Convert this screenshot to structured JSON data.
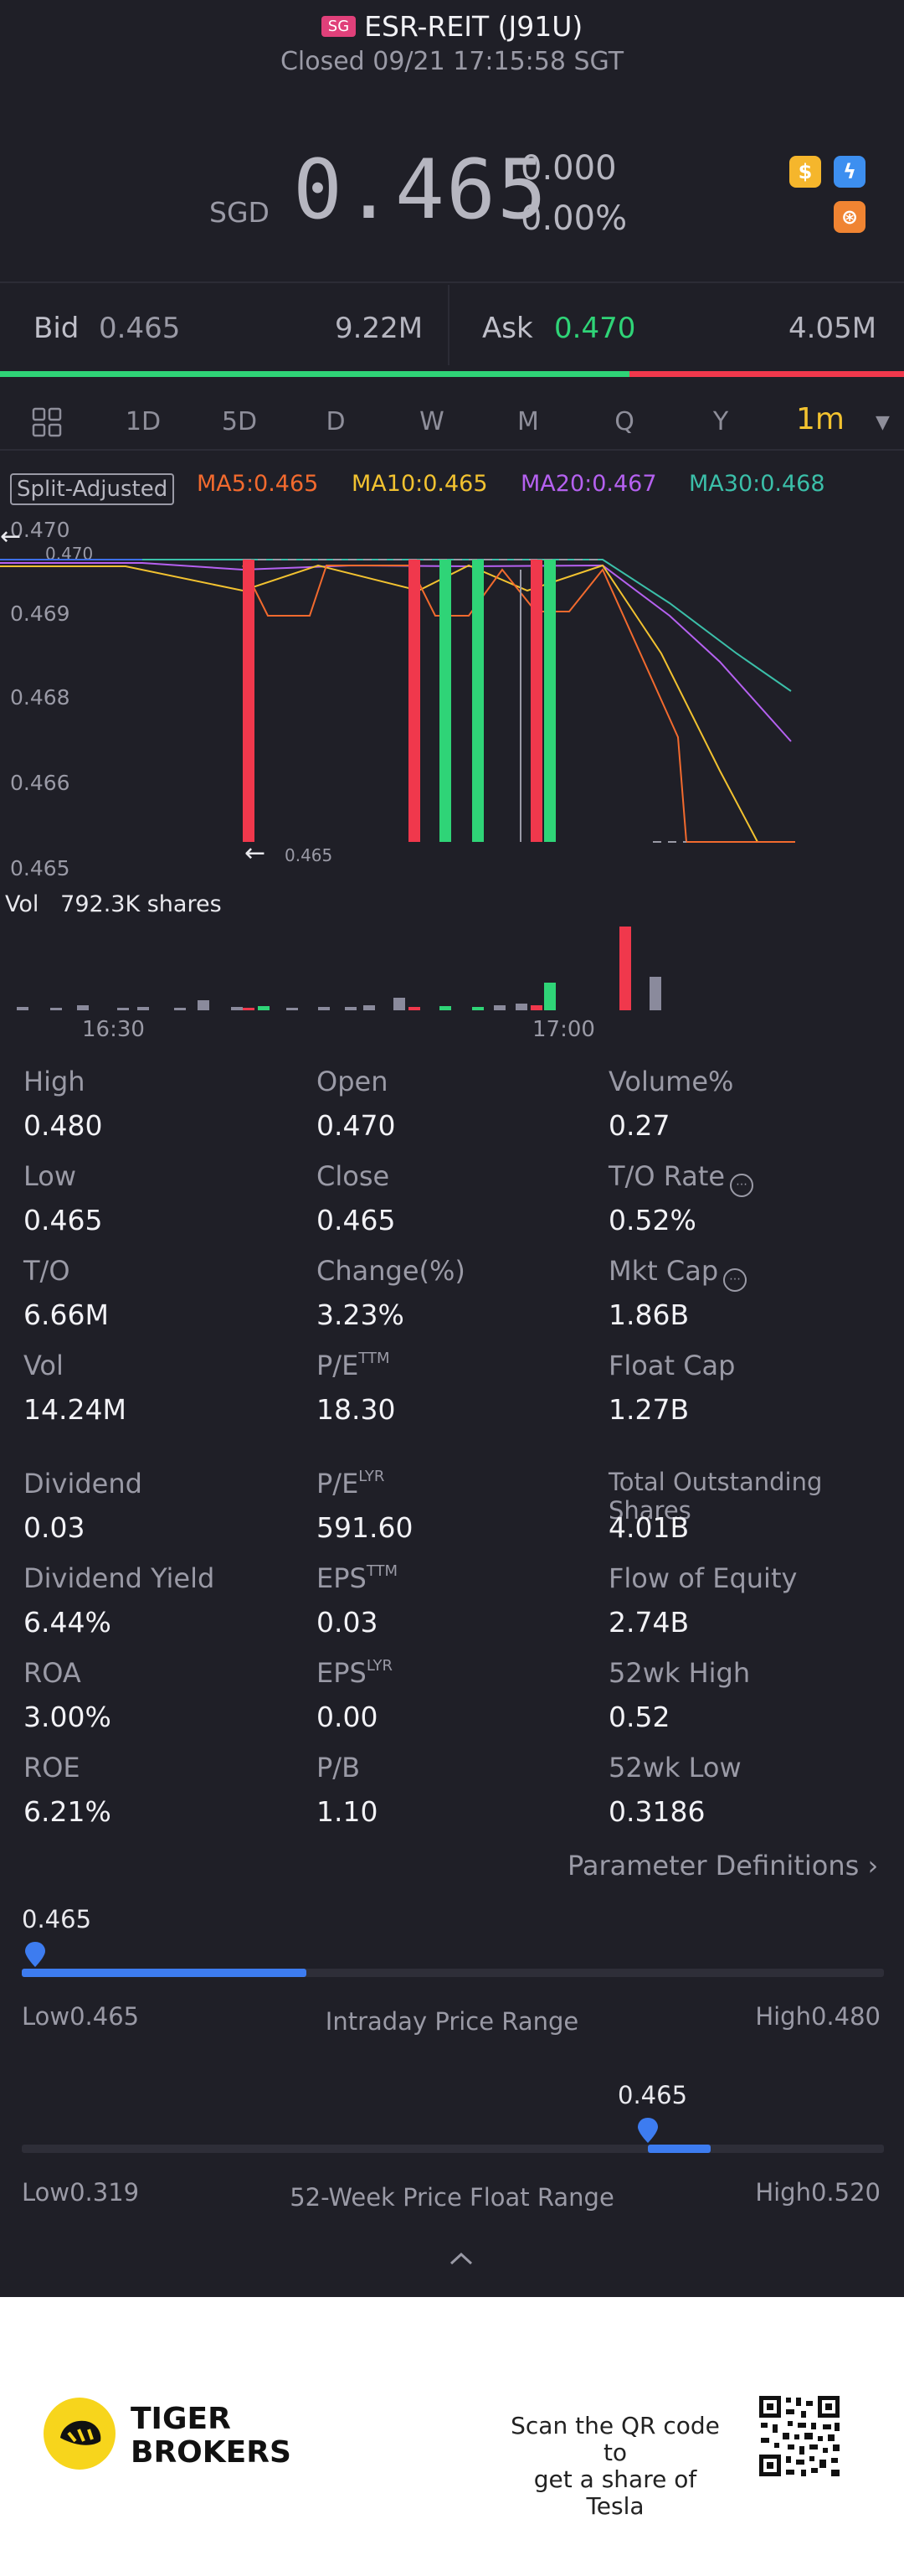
{
  "header": {
    "market_badge": "SG",
    "title": "ESR-REIT (J91U)",
    "status": "Closed 09/21 17:15:58 SGT"
  },
  "quote": {
    "currency": "SGD",
    "price": "0.465",
    "change": "0.000",
    "change_pct": "0.00%",
    "icons": [
      "dollar-badge-icon",
      "lightning-badge-icon",
      "options-badge-icon"
    ]
  },
  "orderbook": {
    "bid_label": "Bid",
    "bid_price": "0.465",
    "bid_volume": "9.22M",
    "ask_label": "Ask",
    "ask_price": "0.470",
    "ask_volume": "4.05M",
    "bid_ratio": 0.696
  },
  "tabs": [
    "1D",
    "5D",
    "D",
    "W",
    "M",
    "Q",
    "Y",
    "1m"
  ],
  "active_tab": "1m",
  "chart": {
    "adjust_label": "Split-Adjusted",
    "ma": [
      {
        "label": "MA5:0.465",
        "color": "#f26a2e"
      },
      {
        "label": "MA10:0.465",
        "color": "#f2c230"
      },
      {
        "label": "MA20:0.467",
        "color": "#b561f0"
      },
      {
        "label": "MA30:0.468",
        "color": "#3bbfa9"
      }
    ],
    "y_labels": [
      "0.470",
      "0.469",
      "0.468",
      "0.466",
      "0.465"
    ],
    "high_marker": "0.470",
    "low_marker": "0.465",
    "volume_label": "Vol",
    "volume_value": "792.3K shares",
    "time_labels": [
      "16:30",
      "17:00"
    ]
  },
  "chart_data": {
    "type": "candlestick",
    "ylim": [
      0.465,
      0.47
    ],
    "x_labels": [
      "16:30",
      "17:00"
    ],
    "candles": [
      {
        "t": 1,
        "o": 0.47,
        "c": 0.465,
        "dir": "down"
      },
      {
        "t": 2,
        "o": 0.47,
        "c": 0.465,
        "dir": "down"
      },
      {
        "t": 3,
        "o": 0.465,
        "c": 0.47,
        "dir": "up"
      },
      {
        "t": 4,
        "o": 0.465,
        "c": 0.47,
        "dir": "up"
      },
      {
        "t": 5,
        "o": 0.47,
        "c": 0.465,
        "dir": "down"
      },
      {
        "t": 6,
        "o": 0.465,
        "c": 0.47,
        "dir": "up"
      }
    ],
    "volumes_colors": [
      "#f0384c",
      "#8a8a9c",
      "#2fd477"
    ]
  },
  "stats": [
    [
      {
        "label": "High",
        "value": "0.480"
      },
      {
        "label": "Open",
        "value": "0.470"
      },
      {
        "label": "Volume%",
        "value": "0.27"
      }
    ],
    [
      {
        "label": "Low",
        "value": "0.465"
      },
      {
        "label": "Close",
        "value": "0.465"
      },
      {
        "label": "T/O Rate",
        "value": "0.52%",
        "info": true
      }
    ],
    [
      {
        "label": "T/O",
        "value": "6.66M"
      },
      {
        "label": "Change(%)",
        "value": "3.23%"
      },
      {
        "label": "Mkt Cap",
        "value": "1.86B",
        "info": true
      }
    ],
    [
      {
        "label": "Vol",
        "value": "14.24M"
      },
      {
        "label": "P/E",
        "sup": "TTM",
        "value": "18.30"
      },
      {
        "label": "Float Cap",
        "value": "1.27B"
      }
    ],
    [
      {
        "label": "Dividend",
        "value": "0.03"
      },
      {
        "label": "P/E",
        "sup": "LYR",
        "value": "591.60"
      },
      {
        "label": "Total Outstanding Shares",
        "value": "4.01B"
      }
    ],
    [
      {
        "label": "Dividend Yield",
        "value": "6.44%"
      },
      {
        "label": "EPS",
        "sup": "TTM",
        "value": "0.03"
      },
      {
        "label": "Flow of Equity",
        "value": "2.74B"
      }
    ],
    [
      {
        "label": "ROA",
        "value": "3.00%"
      },
      {
        "label": "EPS",
        "sup": "LYR",
        "value": "0.00"
      },
      {
        "label": "52wk High",
        "value": "0.52"
      }
    ],
    [
      {
        "label": "ROE",
        "value": "6.21%"
      },
      {
        "label": "P/B",
        "value": "1.10"
      },
      {
        "label": "52wk Low",
        "value": "0.3186"
      }
    ]
  ],
  "param_link": "Parameter Definitions",
  "intraday": {
    "current": "0.465",
    "low": "Low0.465",
    "high": "High0.480",
    "title": "Intraday Price Range",
    "fill_fraction": 0.33,
    "marker_fraction": 0.0
  },
  "week52": {
    "current": "0.465",
    "low": "Low0.319",
    "high": "High0.520",
    "title": "52-Week Price Float Range",
    "fill_start_fraction": 0.725,
    "fill_end_fraction": 0.8
  },
  "footer": {
    "brand_line1": "TIGER",
    "brand_line2": "BROKERS",
    "scan_line1": "Scan the QR code to",
    "scan_line2": "get a share of Tesla"
  }
}
